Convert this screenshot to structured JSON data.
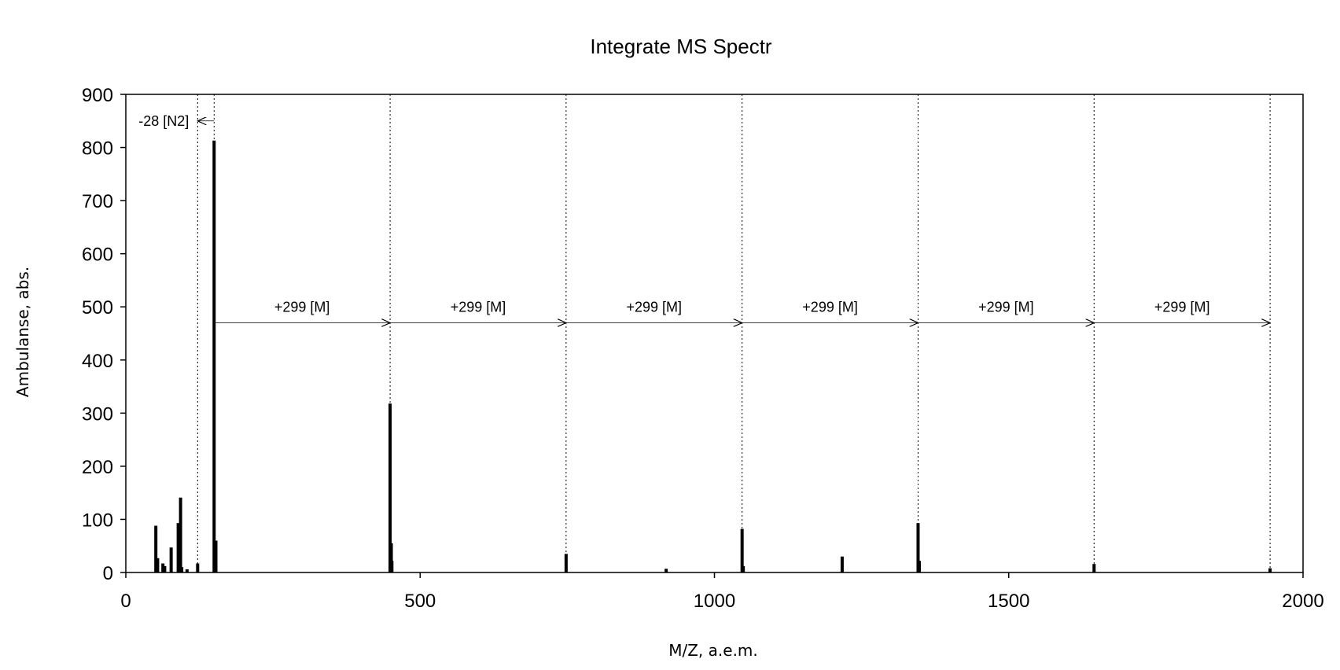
{
  "chart_data": {
    "type": "bar",
    "title": "Integrate MS Spectr",
    "xlabel": "M/Z, a.e.m.",
    "ylabel": "Ambulanse, abs.",
    "xlim": [
      0,
      2000
    ],
    "ylim": [
      0,
      900
    ],
    "xticks": [
      "0",
      "500",
      "1000",
      "1500",
      "2000"
    ],
    "yticks": [
      "0",
      "100",
      "200",
      "300",
      "400",
      "500",
      "600",
      "700",
      "800",
      "900"
    ],
    "grid": false,
    "peaks": [
      {
        "mz": 51,
        "value": 88
      },
      {
        "mz": 54,
        "value": 27
      },
      {
        "mz": 63,
        "value": 17
      },
      {
        "mz": 66,
        "value": 12
      },
      {
        "mz": 77,
        "value": 47
      },
      {
        "mz": 89,
        "value": 93
      },
      {
        "mz": 93,
        "value": 141
      },
      {
        "mz": 95,
        "value": 10
      },
      {
        "mz": 104,
        "value": 6
      },
      {
        "mz": 122,
        "value": 17
      },
      {
        "mz": 150,
        "value": 813
      },
      {
        "mz": 153,
        "value": 60
      },
      {
        "mz": 449,
        "value": 318
      },
      {
        "mz": 451,
        "value": 55
      },
      {
        "mz": 452,
        "value": 22
      },
      {
        "mz": 748,
        "value": 35
      },
      {
        "mz": 918,
        "value": 7
      },
      {
        "mz": 1047,
        "value": 82
      },
      {
        "mz": 1049,
        "value": 12
      },
      {
        "mz": 1217,
        "value": 30
      },
      {
        "mz": 1346,
        "value": 93
      },
      {
        "mz": 1348,
        "value": 22
      },
      {
        "mz": 1645,
        "value": 16
      },
      {
        "mz": 1944,
        "value": 8
      }
    ],
    "reference_lines": [
      122,
      150,
      449,
      748,
      1047,
      1346,
      1645,
      1944
    ],
    "annotations": [
      {
        "label": "-28 [N2]",
        "from": 150,
        "to": 122,
        "y": 850
      },
      {
        "label": "+299 [M]",
        "from": 150,
        "to": 449,
        "y": 470
      },
      {
        "label": "+299 [M]",
        "from": 449,
        "to": 748,
        "y": 470
      },
      {
        "label": "+299 [M]",
        "from": 748,
        "to": 1047,
        "y": 470
      },
      {
        "label": "+299 [M]",
        "from": 1047,
        "to": 1346,
        "y": 470
      },
      {
        "label": "+299 [M]",
        "from": 1346,
        "to": 1645,
        "y": 470
      },
      {
        "label": "+299 [M]",
        "from": 1645,
        "to": 1944,
        "y": 470
      }
    ]
  }
}
